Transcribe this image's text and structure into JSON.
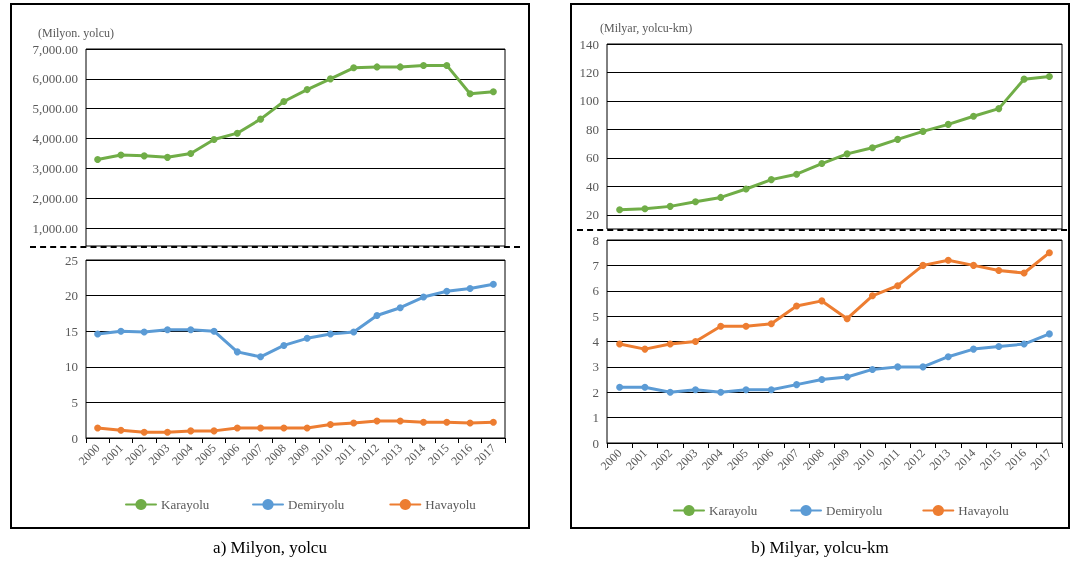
{
  "chart_data": [
    {
      "type": "line",
      "ylabel": "(Milyon. yolcu)",
      "categories": [
        "2000",
        "2001",
        "2002",
        "2003",
        "2004",
        "2005",
        "2006",
        "2007",
        "2008",
        "2009",
        "2010",
        "2011",
        "2012",
        "2013",
        "2014",
        "2015",
        "2016",
        "2017"
      ],
      "tick_labels": "y",
      "ylim": [
        400,
        7000
      ],
      "yticks": [
        {
          "value": 1000,
          "label": "1,000.00"
        },
        {
          "value": 2000,
          "label": "2,000.00"
        },
        {
          "value": 3000,
          "label": "3,000.00"
        },
        {
          "value": 4000,
          "label": "4,000.00"
        },
        {
          "value": 5000,
          "label": "5,000.00"
        },
        {
          "value": 6000,
          "label": "6,000.00"
        },
        {
          "value": 7000,
          "label": "7,000.00"
        }
      ],
      "grid": "y",
      "marker": "circle",
      "line_style": "solid",
      "legend": "bottom",
      "series": [
        {
          "name": "Karayolu",
          "color": "#70ad47",
          "values": [
            3300,
            3450,
            3420,
            3370,
            3500,
            3970,
            4180,
            4650,
            5240,
            5640,
            6000,
            6370,
            6400,
            6400,
            6450,
            6450,
            5500,
            5570
          ]
        }
      ]
    },
    {
      "type": "line",
      "title": "a) Milyon, yolcu",
      "categories": [
        "2000",
        "2001",
        "2002",
        "2003",
        "2004",
        "2005",
        "2006",
        "2007",
        "2008",
        "2009",
        "2010",
        "2011",
        "2012",
        "2013",
        "2014",
        "2015",
        "2016",
        "2017"
      ],
      "ylim": [
        0,
        25
      ],
      "yticks": [
        0,
        5,
        10,
        15,
        20,
        25
      ],
      "grid": "y",
      "marker": "circle",
      "line_style": "solid",
      "legend": "bottom",
      "series": [
        {
          "name": "Demiryolu",
          "color": "#5b9bd5",
          "values": [
            14.6,
            15.0,
            14.9,
            15.2,
            15.2,
            15.0,
            12.1,
            11.4,
            13.0,
            14.0,
            14.6,
            14.9,
            17.2,
            18.3,
            19.8,
            20.6,
            21.0,
            21.6
          ]
        },
        {
          "name": "Havayolu",
          "color": "#ed7d31",
          "values": [
            1.4,
            1.1,
            0.8,
            0.8,
            1.0,
            1.0,
            1.4,
            1.4,
            1.4,
            1.4,
            1.9,
            2.1,
            2.4,
            2.4,
            2.2,
            2.2,
            2.1,
            2.2
          ]
        }
      ]
    },
    {
      "type": "line",
      "ylabel": "(Milyar, yolcu-km)",
      "categories": [
        "2000",
        "2001",
        "2002",
        "2003",
        "2004",
        "2005",
        "2006",
        "2007",
        "2008",
        "2009",
        "2010",
        "2011",
        "2012",
        "2013",
        "2014",
        "2015",
        "2016",
        "2017"
      ],
      "tick_labels": "y",
      "ylim": [
        10,
        140
      ],
      "yticks": [
        20,
        40,
        60,
        80,
        100,
        120,
        140
      ],
      "grid": "y",
      "marker": "circle",
      "line_style": "solid",
      "legend": "bottom",
      "series": [
        {
          "name": "Karayolu",
          "color": "#70ad47",
          "values": [
            23.5,
            24.2,
            25.9,
            29.2,
            32.2,
            38.1,
            44.7,
            48.5,
            56,
            62.8,
            67.1,
            73,
            78.6,
            83.5,
            89.2,
            94.6,
            115.3,
            117.2
          ]
        }
      ]
    },
    {
      "type": "line",
      "title": "b) Milyar, yolcu-km",
      "categories": [
        "2000",
        "2001",
        "2002",
        "2003",
        "2004",
        "2005",
        "2006",
        "2007",
        "2008",
        "2009",
        "2010",
        "2011",
        "2012",
        "2013",
        "2014",
        "2015",
        "2016",
        "2017"
      ],
      "ylim": [
        0,
        8
      ],
      "yticks": [
        0,
        1,
        2,
        3,
        4,
        5,
        6,
        7,
        8
      ],
      "grid": "y",
      "marker": "circle",
      "line_style": "solid",
      "legend": "bottom",
      "series": [
        {
          "name": "Demiryolu",
          "color": "#5b9bd5",
          "values": [
            2.2,
            2.2,
            2.0,
            2.1,
            2.0,
            2.1,
            2.1,
            2.3,
            2.5,
            2.6,
            2.9,
            3.0,
            3.0,
            3.4,
            3.7,
            3.8,
            3.9,
            4.3
          ]
        },
        {
          "name": "Havayolu",
          "color": "#ed7d31",
          "values": [
            3.9,
            3.7,
            3.9,
            4.0,
            4.6,
            4.6,
            4.7,
            5.4,
            5.6,
            4.9,
            5.8,
            6.2,
            7.0,
            7.2,
            7.0,
            6.8,
            6.7,
            7.5
          ]
        }
      ]
    }
  ]
}
